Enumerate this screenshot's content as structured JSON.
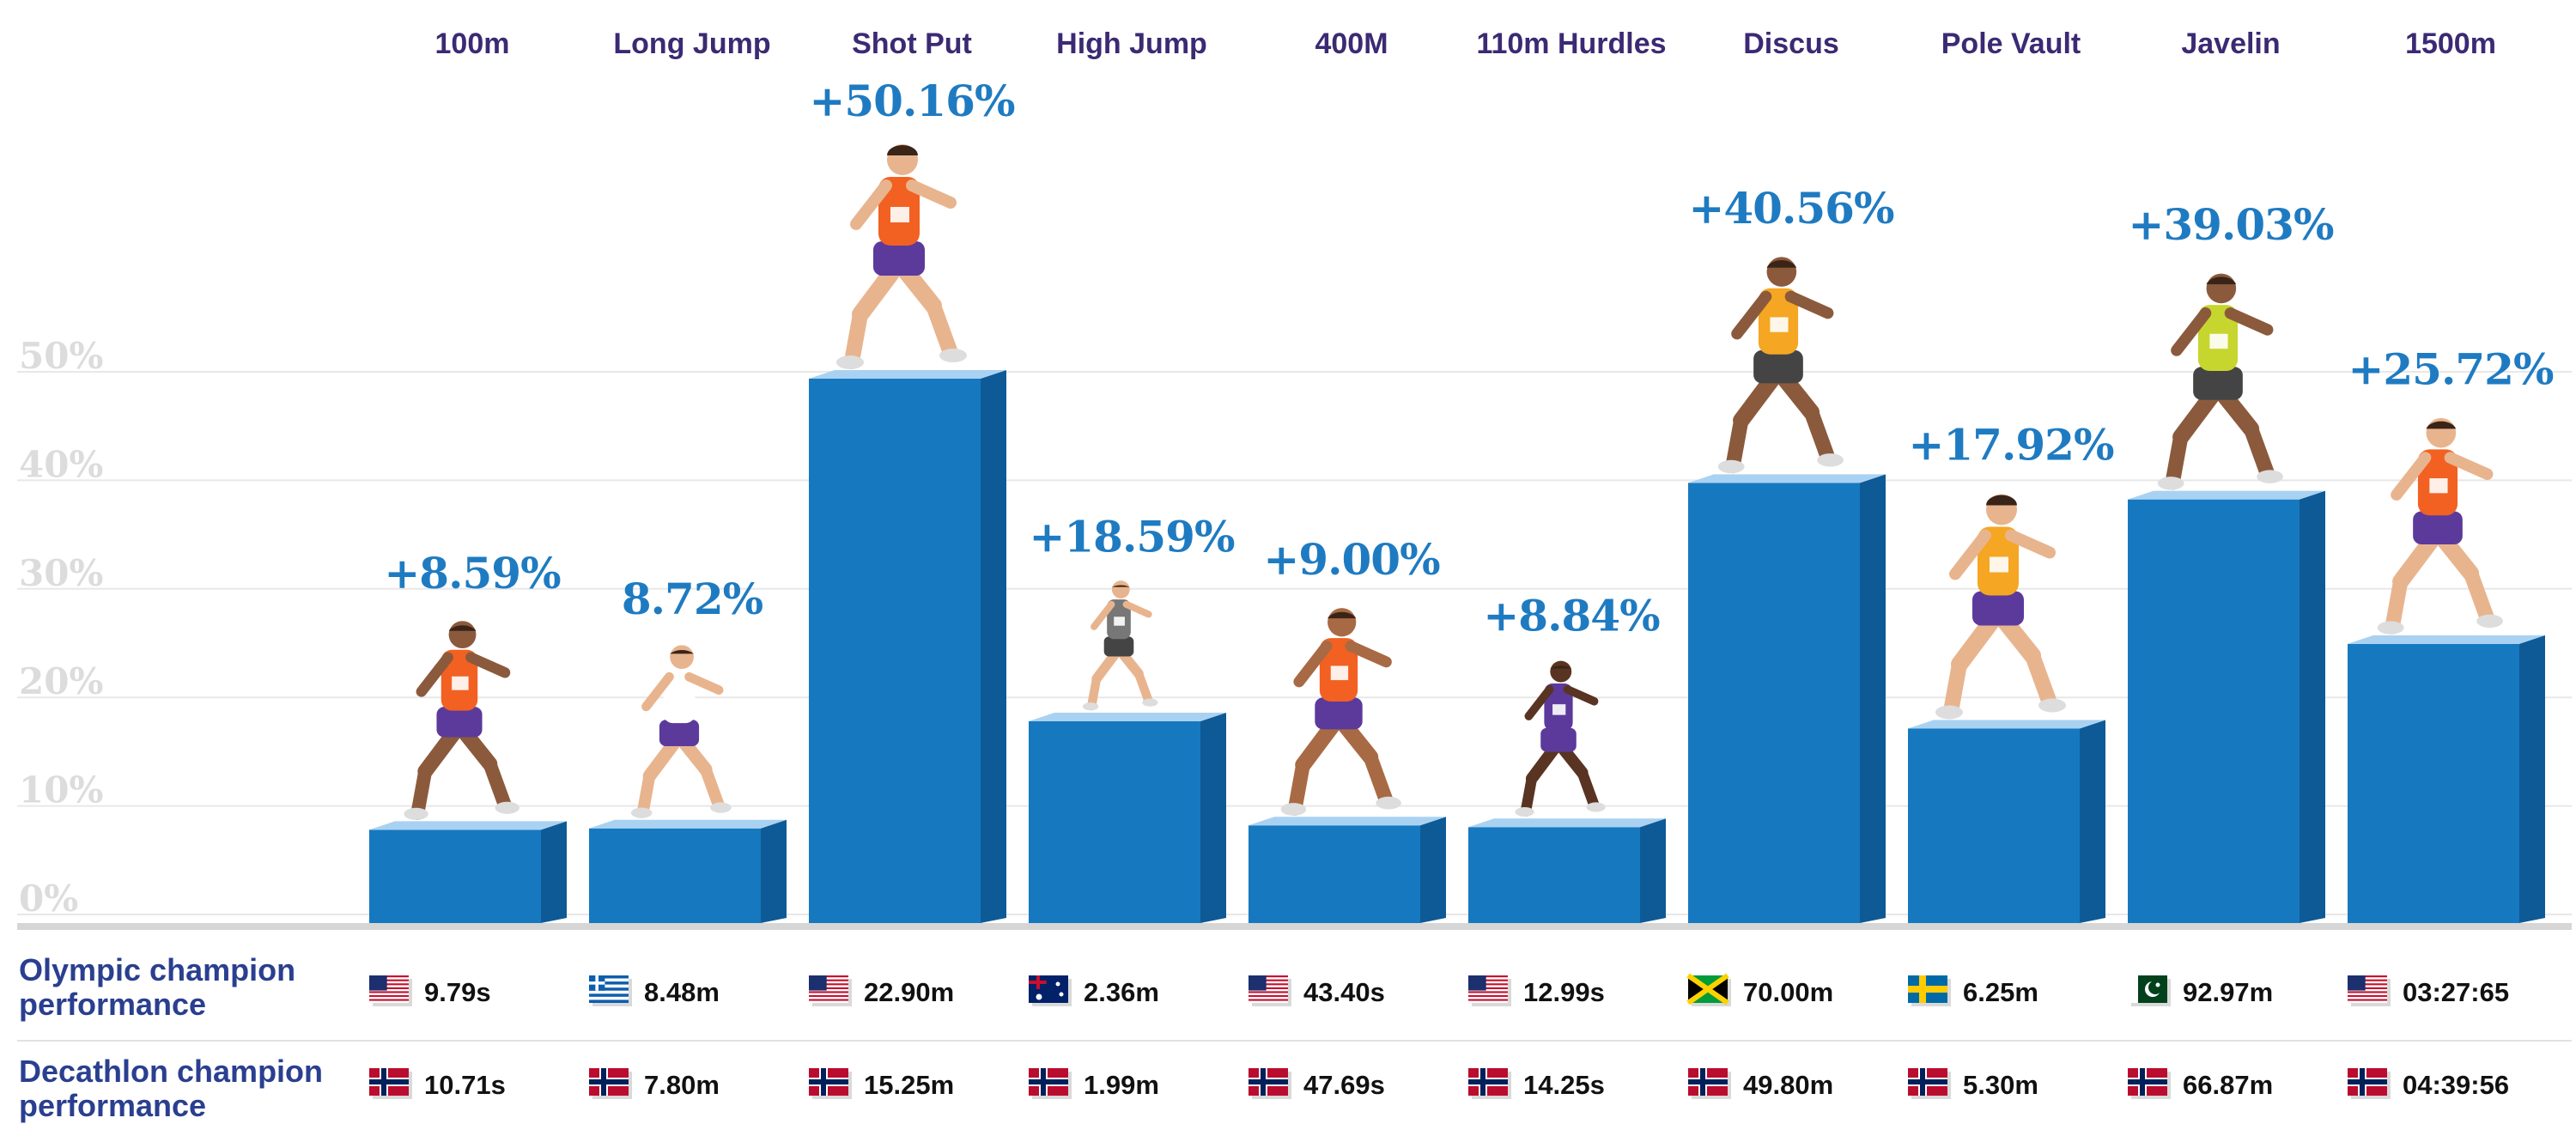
{
  "chart_data": {
    "type": "bar",
    "categories": [
      "100m",
      "Long Jump",
      "Shot Put",
      "High Jump",
      "400M",
      "110m Hurdles",
      "Discus",
      "Pole Vault",
      "Javelin",
      "1500m"
    ],
    "values": [
      8.59,
      8.72,
      50.16,
      18.59,
      9.0,
      8.84,
      40.56,
      17.92,
      39.03,
      25.72
    ],
    "value_labels": [
      "+8.59%",
      "8.72%",
      "+50.16%",
      "+18.59%",
      "+9.00%",
      "+8.84%",
      "+40.56%",
      "+17.92%",
      "+39.03%",
      "+25.72%"
    ],
    "y_ticks": [
      "0%",
      "10%",
      "20%",
      "30%",
      "40%",
      "50%"
    ],
    "ylim": [
      0,
      50
    ],
    "grid": true,
    "bar_color": "#1679c0",
    "title": "",
    "xlabel": "",
    "ylabel": ""
  },
  "rows": {
    "olympic": {
      "label_line1": "Olympic champion",
      "label_line2": "performance",
      "flags": [
        "usa",
        "greece",
        "usa",
        "australia",
        "usa",
        "usa",
        "jamaica",
        "sweden",
        "pakistan",
        "usa"
      ],
      "values": [
        "9.79s",
        "8.48m",
        "22.90m",
        "2.36m",
        "43.40s",
        "12.99s",
        "70.00m",
        "6.25m",
        "92.97m",
        "03:27:65"
      ]
    },
    "decathlon": {
      "label_line1": "Decathlon champion",
      "label_line2": "performance",
      "flags": [
        "norway",
        "norway",
        "norway",
        "norway",
        "norway",
        "norway",
        "norway",
        "norway",
        "norway",
        "norway"
      ],
      "values": [
        "10.71s",
        "7.80m",
        "15.25m",
        "1.99m",
        "47.69s",
        "14.25s",
        "49.80m",
        "5.30m",
        "66.87m",
        "04:39:56"
      ]
    }
  },
  "colors": {
    "bar": "#1679c0",
    "bar_side": "#0e5a96",
    "bar_top": "#a9d2f2",
    "label": "#1f7bc1",
    "category": "#3b2a73",
    "row_label": "#2a3f8f"
  }
}
